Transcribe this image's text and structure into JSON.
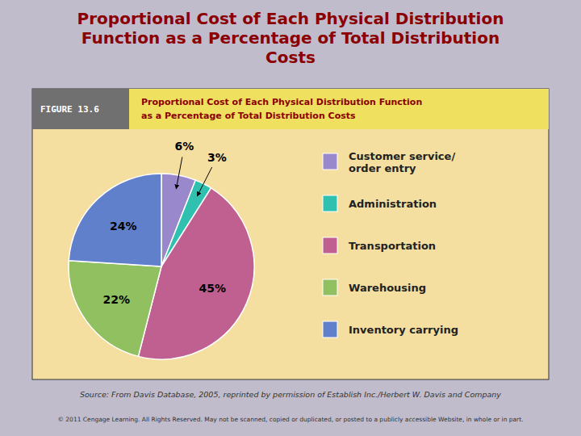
{
  "chart_data": {
    "type": "pie",
    "title": "Proportional Cost of Each Physical Distribution\nFunction as a Percentage of Total Distribution\nCosts",
    "subtitle": [
      "Proportional Cost of Each Physical Distribution Function",
      "as a Percentage of Total Distribution Costs"
    ],
    "annotations": [
      "FIGURE 13.6",
      "Source:  From Davis Database, 2005, reprinted by permission of Establish Inc./Herbert W. Davis and Company",
      "© 2011 Cengage Learning. All Rights Reserved. May not be scanned, copied or duplicated, or posted to a publicly accessible Website, in whole or in part."
    ],
    "categories": [
      "Customer service/\norder entry",
      "Administration",
      "Transportation",
      "Warehousing",
      "Inventory carrying"
    ],
    "values": [
      6,
      3,
      45,
      22,
      24
    ],
    "value_labels": [
      "6%",
      "3%",
      "45%",
      "22%",
      "24%"
    ],
    "data_labels": true,
    "colors": [
      "#9988CC",
      "#30C0B0",
      "#C06090",
      "#90C060",
      "#6080CC"
    ]
  }
}
